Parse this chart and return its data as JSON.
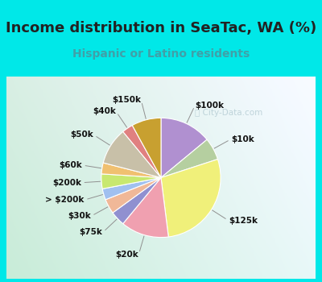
{
  "title": "Income distribution in SeaTac, WA (%)",
  "subtitle": "Hispanic or Latino residents",
  "watermark": "ⓘ City-Data.com",
  "slices_clockwise": [
    {
      "label": "$100k",
      "value": 14,
      "color": "#b090d0"
    },
    {
      "label": "$10k",
      "value": 6,
      "color": "#b5cfa0"
    },
    {
      "label": "$125k",
      "value": 28,
      "color": "#f0f07a"
    },
    {
      "label": "$20k",
      "value": 13,
      "color": "#f0a0b0"
    },
    {
      "label": "$75k",
      "value": 4,
      "color": "#9090d0"
    },
    {
      "label": "$30k",
      "value": 4,
      "color": "#f0b898"
    },
    {
      "label": "> $200k",
      "value": 3,
      "color": "#a0c0f0"
    },
    {
      "label": "$200k",
      "value": 4,
      "color": "#c8e870"
    },
    {
      "label": "$60k",
      "value": 3,
      "color": "#f0c070"
    },
    {
      "label": "$50k",
      "value": 10,
      "color": "#c8c0a8"
    },
    {
      "label": "$40k",
      "value": 3,
      "color": "#e08080"
    },
    {
      "label": "$150k",
      "value": 8,
      "color": "#c8a030"
    }
  ],
  "bg_cyan": "#00e8e8",
  "bg_chart_left": "#c8ecd8",
  "bg_chart_right": "#e8f8f8",
  "title_color": "#222222",
  "subtitle_color": "#40a0a8",
  "title_fontsize": 13,
  "subtitle_fontsize": 10,
  "watermark_color": "#b0c8d0",
  "label_fontsize": 7.5
}
